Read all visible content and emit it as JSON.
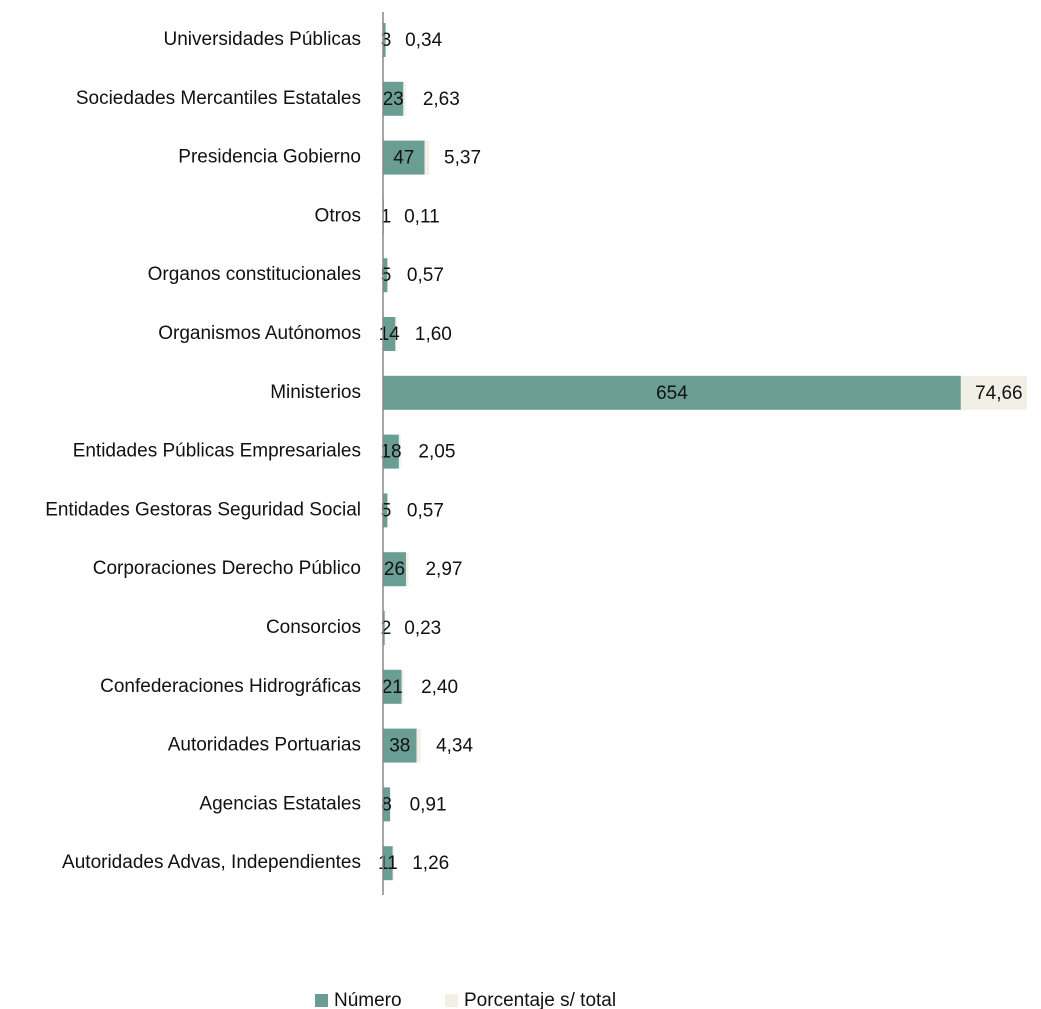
{
  "chart_data": {
    "type": "stacked_barh",
    "categories": [
      "Universidades Públicas",
      "Sociedades Mercantiles Estatales",
      "Presidencia Gobierno",
      "Otros",
      "Organos constitucionales",
      "Organismos Autónomos",
      "Ministerios",
      "Entidades Públicas Empresariales",
      "Entidades Gestoras Seguridad Social",
      "Corporaciones Derecho Público",
      "Consorcios",
      "Confederaciones Hidrográficas",
      "Autoridades Portuarias",
      "Agencias Estatales",
      "Autoridades Advas, Independientes"
    ],
    "series": [
      {
        "name": "Número",
        "color": "#6a9e94",
        "values": [
          3,
          23,
          47,
          1,
          5,
          14,
          654,
          18,
          5,
          26,
          2,
          21,
          38,
          8,
          11
        ]
      },
      {
        "name": "Porcentaje s/ total",
        "color": "#f2f0e6",
        "values": [
          0.34,
          2.63,
          5.37,
          0.11,
          0.57,
          1.6,
          74.66,
          2.05,
          0.57,
          2.97,
          0.23,
          2.4,
          4.34,
          0.91,
          1.26
        ],
        "value_labels": [
          "0,34",
          "2,63",
          "5,37",
          "0,11",
          "0,57",
          "1,60",
          "74,66",
          "2,05",
          "0,57",
          "2,97",
          "0,23",
          "2,40",
          "4,34",
          "0,91",
          "1,26"
        ]
      }
    ],
    "xlim": [
      0,
      730
    ],
    "legend": "bottom"
  }
}
